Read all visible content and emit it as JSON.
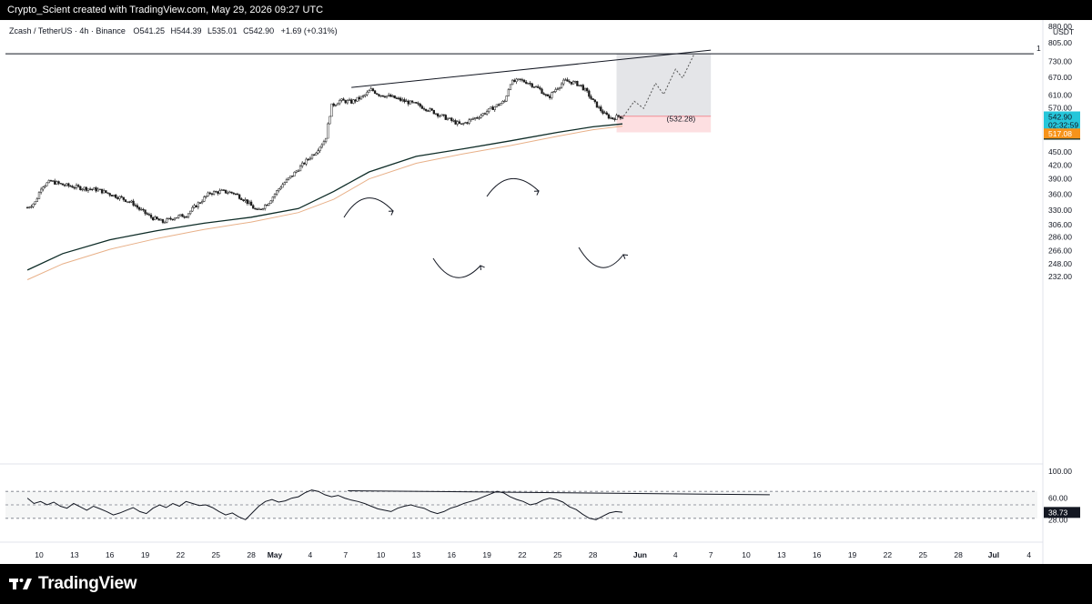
{
  "header": {
    "attribution": "Crypto_Scient created with TradingView.com, May 29, 2026 09:27 UTC"
  },
  "footer": {
    "brand": "TradingView"
  },
  "chart_data": {
    "type": "candlestick",
    "legend": {
      "symbol": "Zcash / TetherUS · 4h · Binance",
      "open_label": "O",
      "open": "541.25",
      "high_label": "H",
      "high": "544.39",
      "low_label": "L",
      "low": "535.01",
      "close_label": "C",
      "close": "542.90",
      "change": "+1.69 (+0.31%)"
    },
    "currency": "USDT",
    "price_scale": "log",
    "price_ticks": [
      "1,120.00",
      "1,040.00",
      "960.00",
      "880.00",
      "805.00",
      "730.00",
      "670.00",
      "610.00",
      "570.00",
      "450.00",
      "420.00",
      "390.00",
      "360.00",
      "330.00",
      "306.00",
      "286.00",
      "266.00",
      "248.00",
      "232.00"
    ],
    "price_tags": [
      {
        "value": "542.90",
        "sub": "02:32:59",
        "color": "#26c6da",
        "text_color": "#131722"
      },
      {
        "value": "522.91",
        "color": "#0d2b26",
        "text_color": "#ffffff"
      },
      {
        "value": "517.08",
        "color": "#f7931a",
        "text_color": "#ffffff"
      }
    ],
    "horizontal_line": {
      "price": 760,
      "label": "1"
    },
    "time_ticks": [
      {
        "label": "10",
        "day": -20
      },
      {
        "label": "13",
        "day": -17
      },
      {
        "label": "16",
        "day": -14
      },
      {
        "label": "19",
        "day": -11
      },
      {
        "label": "22",
        "day": -8
      },
      {
        "label": "25",
        "day": -5
      },
      {
        "label": "28",
        "day": -2
      },
      {
        "label": "May",
        "day": 0
      },
      {
        "label": "4",
        "day": 3
      },
      {
        "label": "7",
        "day": 6
      },
      {
        "label": "10",
        "day": 9
      },
      {
        "label": "13",
        "day": 12
      },
      {
        "label": "16",
        "day": 15
      },
      {
        "label": "19",
        "day": 18
      },
      {
        "label": "22",
        "day": 21
      },
      {
        "label": "25",
        "day": 24
      },
      {
        "label": "28",
        "day": 27
      },
      {
        "label": "Jun",
        "day": 31
      },
      {
        "label": "4",
        "day": 34
      },
      {
        "label": "7",
        "day": 37
      },
      {
        "label": "10",
        "day": 40
      },
      {
        "label": "13",
        "day": 43
      },
      {
        "label": "16",
        "day": 46
      },
      {
        "label": "19",
        "day": 49
      },
      {
        "label": "22",
        "day": 52
      },
      {
        "label": "25",
        "day": 55
      },
      {
        "label": "28",
        "day": 58
      },
      {
        "label": "Jul",
        "day": 61
      },
      {
        "label": "4",
        "day": 64
      }
    ],
    "price_path": [
      {
        "day": -21.0,
        "price": 335
      },
      {
        "day": -20.3,
        "price": 345
      },
      {
        "day": -19.8,
        "price": 375
      },
      {
        "day": -19.0,
        "price": 385
      },
      {
        "day": -18.0,
        "price": 378
      },
      {
        "day": -16.5,
        "price": 372
      },
      {
        "day": -15.0,
        "price": 368
      },
      {
        "day": -14.0,
        "price": 360
      },
      {
        "day": -13.0,
        "price": 352
      },
      {
        "day": -12.0,
        "price": 342
      },
      {
        "day": -11.5,
        "price": 332
      },
      {
        "day": -10.5,
        "price": 318
      },
      {
        "day": -9.5,
        "price": 310
      },
      {
        "day": -8.5,
        "price": 318
      },
      {
        "day": -7.5,
        "price": 322
      },
      {
        "day": -6.5,
        "price": 342
      },
      {
        "day": -5.5,
        "price": 362
      },
      {
        "day": -4.5,
        "price": 365
      },
      {
        "day": -3.5,
        "price": 362
      },
      {
        "day": -2.5,
        "price": 348
      },
      {
        "day": -1.5,
        "price": 328
      },
      {
        "day": -0.5,
        "price": 345
      },
      {
        "day": 0.5,
        "price": 375
      },
      {
        "day": 1.5,
        "price": 398
      },
      {
        "day": 2.5,
        "price": 425
      },
      {
        "day": 3.5,
        "price": 452
      },
      {
        "day": 4.3,
        "price": 482
      },
      {
        "day": 4.8,
        "price": 575
      },
      {
        "day": 5.5,
        "price": 592
      },
      {
        "day": 6.5,
        "price": 588
      },
      {
        "day": 7.5,
        "price": 605
      },
      {
        "day": 8.2,
        "price": 628
      },
      {
        "day": 8.8,
        "price": 612
      },
      {
        "day": 9.8,
        "price": 605
      },
      {
        "day": 11.0,
        "price": 590
      },
      {
        "day": 12.0,
        "price": 580
      },
      {
        "day": 13.0,
        "price": 565
      },
      {
        "day": 14.0,
        "price": 548
      },
      {
        "day": 15.0,
        "price": 532
      },
      {
        "day": 15.8,
        "price": 520
      },
      {
        "day": 16.5,
        "price": 532
      },
      {
        "day": 17.5,
        "price": 548
      },
      {
        "day": 18.5,
        "price": 570
      },
      {
        "day": 19.5,
        "price": 590
      },
      {
        "day": 20.0,
        "price": 652
      },
      {
        "day": 20.8,
        "price": 660
      },
      {
        "day": 21.5,
        "price": 652
      },
      {
        "day": 22.5,
        "price": 628
      },
      {
        "day": 23.2,
        "price": 600
      },
      {
        "day": 23.8,
        "price": 628
      },
      {
        "day": 24.6,
        "price": 658
      },
      {
        "day": 25.5,
        "price": 650
      },
      {
        "day": 26.0,
        "price": 640
      },
      {
        "day": 26.5,
        "price": 618
      },
      {
        "day": 27.0,
        "price": 590
      },
      {
        "day": 27.6,
        "price": 565
      },
      {
        "day": 28.0,
        "price": 550
      },
      {
        "day": 28.6,
        "price": 538
      },
      {
        "day": 29.2,
        "price": 545
      },
      {
        "day": 29.5,
        "price": 543
      }
    ],
    "ema_fast": [
      {
        "day": -21.0,
        "price": 240
      },
      {
        "day": -18.0,
        "price": 262
      },
      {
        "day": -14.0,
        "price": 282
      },
      {
        "day": -10.0,
        "price": 296
      },
      {
        "day": -6.0,
        "price": 308
      },
      {
        "day": -2.0,
        "price": 318
      },
      {
        "day": 2.0,
        "price": 333
      },
      {
        "day": 5.0,
        "price": 365
      },
      {
        "day": 8.0,
        "price": 405
      },
      {
        "day": 12.0,
        "price": 440
      },
      {
        "day": 16.0,
        "price": 458
      },
      {
        "day": 20.0,
        "price": 478
      },
      {
        "day": 24.0,
        "price": 500
      },
      {
        "day": 27.0,
        "price": 515
      },
      {
        "day": 29.5,
        "price": 523
      }
    ],
    "ema_slow": [
      {
        "day": -21.0,
        "price": 228
      },
      {
        "day": -18.0,
        "price": 248
      },
      {
        "day": -14.0,
        "price": 268
      },
      {
        "day": -10.0,
        "price": 284
      },
      {
        "day": -6.0,
        "price": 298
      },
      {
        "day": -2.0,
        "price": 310
      },
      {
        "day": 2.0,
        "price": 326
      },
      {
        "day": 5.0,
        "price": 350
      },
      {
        "day": 8.0,
        "price": 390
      },
      {
        "day": 12.0,
        "price": 424
      },
      {
        "day": 16.0,
        "price": 446
      },
      {
        "day": 20.0,
        "price": 466
      },
      {
        "day": 24.0,
        "price": 490
      },
      {
        "day": 27.0,
        "price": 507
      },
      {
        "day": 29.5,
        "price": 517
      }
    ],
    "trendline": {
      "from": {
        "day": 6.5,
        "price": 635
      },
      "to": {
        "day": 37.0,
        "price": 775
      }
    },
    "projection": [
      {
        "day": 29.6,
        "price": 545
      },
      {
        "day": 30.5,
        "price": 590
      },
      {
        "day": 31.3,
        "price": 568
      },
      {
        "day": 32.3,
        "price": 650
      },
      {
        "day": 33.0,
        "price": 612
      },
      {
        "day": 34.0,
        "price": 700
      },
      {
        "day": 34.6,
        "price": 668
      },
      {
        "day": 35.6,
        "price": 760
      }
    ],
    "long_position": {
      "start_day": 29.0,
      "end_day": 37.0,
      "entry": 545,
      "target": 760,
      "stop": 500,
      "entry_label": "(532.28)"
    },
    "rsi": {
      "ticks": [
        "100.00",
        "60.00",
        "28.00"
      ],
      "current": "38.73",
      "levels": [
        70,
        50,
        30
      ],
      "values": [
        60,
        52,
        55,
        50,
        54,
        48,
        45,
        52,
        47,
        42,
        48,
        44,
        40,
        35,
        38,
        42,
        46,
        40,
        37,
        45,
        50,
        46,
        52,
        48,
        55,
        52,
        49,
        50,
        46,
        40,
        35,
        38,
        32,
        28,
        38,
        48,
        55,
        58,
        54,
        56,
        60,
        62,
        68,
        72,
        70,
        65,
        62,
        64,
        60,
        57,
        55,
        52,
        48,
        44,
        42,
        40,
        45,
        48,
        50,
        47,
        45,
        40,
        37,
        40,
        45,
        48,
        52,
        55,
        58,
        62,
        66,
        70,
        68,
        62,
        58,
        55,
        50,
        52,
        57,
        60,
        58,
        54,
        47,
        43,
        36,
        30,
        28,
        33,
        38,
        40,
        39
      ],
      "divergence": {
        "from": {
          "day": 6.2,
          "rsi": 71
        },
        "to": {
          "day": 42.0,
          "rsi": 65
        }
      }
    }
  }
}
